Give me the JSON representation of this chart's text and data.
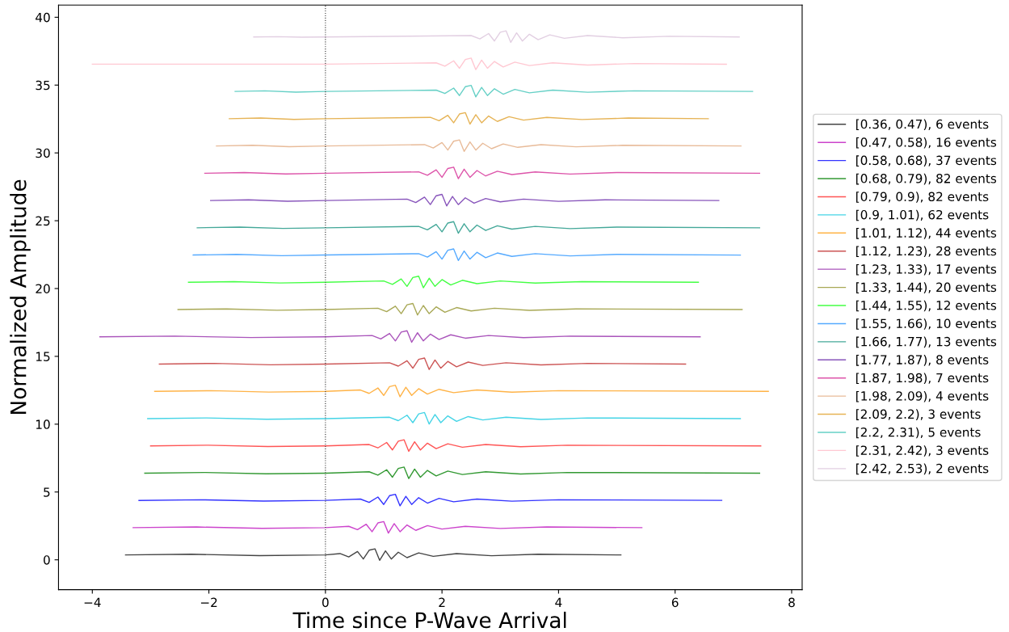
{
  "chart_data": {
    "type": "line",
    "xlabel": "Time since P-Wave Arrival",
    "ylabel": "Normalized Amplitude",
    "xlim": [
      -4.58,
      8.18
    ],
    "ylim": [
      -2.2,
      40.9
    ],
    "xticks": [
      {
        "value": -4,
        "label": "−4"
      },
      {
        "value": -2,
        "label": "−2"
      },
      0,
      2,
      4,
      6,
      8
    ],
    "yticks": [
      0,
      5,
      10,
      15,
      20,
      25,
      30,
      35,
      40
    ],
    "grid": false,
    "legend": "right",
    "line_style": "solid",
    "marker": "none",
    "ref_lines": [
      {
        "axis": "x",
        "value": 0,
        "color": "#333333",
        "line_style": "dotted"
      }
    ],
    "series": [
      {
        "name": "[0.36, 0.47), 6 events",
        "color": "#444444",
        "x": [
          -3.43,
          -2.3,
          -1.13,
          0,
          0.25,
          0.4,
          0.55,
          0.65,
          0.75,
          0.85,
          0.93,
          1.03,
          1.13,
          1.25,
          1.4,
          1.6,
          1.85,
          2.25,
          2.85,
          3.65,
          5.07
        ],
        "values": [
          0.36,
          0.41,
          0.31,
          0.36,
          0.46,
          0.21,
          0.61,
          0.06,
          0.71,
          0.81,
          -0.04,
          0.66,
          0.06,
          0.56,
          0.16,
          0.51,
          0.26,
          0.46,
          0.3,
          0.41,
          0.36
        ]
      },
      {
        "name": "[0.47, 0.58), 16 events",
        "color": "#cc44cc",
        "x": [
          -3.3,
          -2.21,
          -1.09,
          0,
          0.4,
          0.55,
          0.7,
          0.8,
          0.9,
          1.0,
          1.08,
          1.18,
          1.28,
          1.4,
          1.55,
          1.75,
          2.0,
          2.4,
          3.0,
          3.8,
          5.43
        ],
        "values": [
          2.37,
          2.42,
          2.32,
          2.37,
          2.47,
          2.22,
          2.62,
          2.07,
          2.72,
          2.82,
          1.97,
          2.67,
          2.07,
          2.57,
          2.17,
          2.52,
          2.27,
          2.47,
          2.31,
          2.42,
          2.37
        ]
      },
      {
        "name": "[0.58, 0.68), 37 events",
        "color": "#3333ff",
        "x": [
          -3.2,
          -2.14,
          -1.06,
          0,
          0.6,
          0.75,
          0.9,
          1.0,
          1.1,
          1.2,
          1.28,
          1.38,
          1.48,
          1.6,
          1.75,
          1.95,
          2.2,
          2.6,
          3.2,
          4.0,
          6.8
        ],
        "values": [
          4.38,
          4.43,
          4.33,
          4.38,
          4.48,
          4.23,
          4.63,
          4.08,
          4.73,
          4.83,
          3.98,
          4.68,
          4.08,
          4.58,
          4.18,
          4.53,
          4.28,
          4.48,
          4.32,
          4.43,
          4.38
        ]
      },
      {
        "name": "[0.68, 0.79), 82 events",
        "color": "#339933",
        "x": [
          -3.1,
          -2.08,
          -1.02,
          0,
          0.75,
          0.9,
          1.05,
          1.15,
          1.25,
          1.35,
          1.43,
          1.53,
          1.63,
          1.75,
          1.9,
          2.1,
          2.35,
          2.75,
          3.35,
          4.15,
          7.45
        ],
        "values": [
          6.39,
          6.44,
          6.34,
          6.39,
          6.49,
          6.24,
          6.64,
          6.09,
          6.74,
          6.84,
          5.99,
          6.69,
          6.09,
          6.59,
          6.19,
          6.54,
          6.29,
          6.49,
          6.33,
          6.44,
          6.39
        ]
      },
      {
        "name": "[0.79, 0.9), 82 events",
        "color": "#ff5555",
        "x": [
          -3.0,
          -2.01,
          -0.99,
          0,
          0.75,
          0.9,
          1.05,
          1.15,
          1.25,
          1.35,
          1.43,
          1.53,
          1.63,
          1.75,
          1.9,
          2.1,
          2.35,
          2.75,
          3.35,
          4.15,
          7.47
        ],
        "values": [
          8.4,
          8.45,
          8.35,
          8.4,
          8.5,
          8.25,
          8.65,
          8.1,
          8.75,
          8.85,
          8.0,
          8.7,
          8.1,
          8.6,
          8.2,
          8.55,
          8.3,
          8.5,
          8.34,
          8.45,
          8.4
        ]
      },
      {
        "name": "[0.9, 1.01), 62 events",
        "color": "#44d4e6",
        "x": [
          -3.05,
          -2.04,
          -1.01,
          0,
          1.1,
          1.25,
          1.4,
          1.5,
          1.6,
          1.7,
          1.78,
          1.88,
          1.98,
          2.1,
          2.25,
          2.45,
          2.7,
          3.1,
          3.7,
          4.5,
          7.12
        ],
        "values": [
          10.41,
          10.46,
          10.36,
          10.41,
          10.51,
          10.26,
          10.66,
          10.11,
          10.76,
          10.86,
          10.01,
          10.71,
          10.11,
          10.61,
          10.21,
          10.56,
          10.31,
          10.51,
          10.35,
          10.46,
          10.41
        ]
      },
      {
        "name": "[1.01, 1.12), 44 events",
        "color": "#ffb347",
        "x": [
          -2.93,
          -1.96,
          -0.97,
          0,
          0.6,
          0.75,
          0.9,
          1.0,
          1.1,
          1.2,
          1.28,
          1.38,
          1.48,
          1.6,
          1.75,
          1.95,
          2.2,
          2.6,
          3.2,
          4.0,
          7.6
        ],
        "values": [
          12.42,
          12.47,
          12.37,
          12.42,
          12.52,
          12.27,
          12.67,
          12.12,
          12.77,
          12.87,
          12.02,
          12.72,
          12.12,
          12.62,
          12.22,
          12.57,
          12.32,
          12.52,
          12.36,
          12.47,
          12.42
        ]
      },
      {
        "name": "[1.12, 1.23), 28 events",
        "color": "#cc5555",
        "x": [
          -2.85,
          -1.91,
          -0.94,
          0,
          1.1,
          1.25,
          1.4,
          1.5,
          1.6,
          1.7,
          1.78,
          1.88,
          1.98,
          2.1,
          2.25,
          2.45,
          2.7,
          3.1,
          3.7,
          4.5,
          6.18
        ],
        "values": [
          14.43,
          14.48,
          14.38,
          14.43,
          14.53,
          14.28,
          14.68,
          14.13,
          14.78,
          14.88,
          14.03,
          14.73,
          14.13,
          14.63,
          14.23,
          14.58,
          14.33,
          14.53,
          14.37,
          14.48,
          14.43
        ]
      },
      {
        "name": "[1.23, 1.33), 17 events",
        "color": "#aa55bb",
        "x": [
          -3.87,
          -2.59,
          -1.28,
          0,
          0.8,
          0.95,
          1.1,
          1.2,
          1.3,
          1.4,
          1.48,
          1.58,
          1.68,
          1.8,
          1.95,
          2.15,
          2.4,
          2.8,
          3.4,
          4.2,
          6.43
        ],
        "values": [
          16.44,
          16.49,
          16.39,
          16.44,
          16.54,
          16.29,
          16.69,
          16.14,
          16.79,
          16.89,
          16.04,
          16.74,
          16.14,
          16.64,
          16.24,
          16.59,
          16.34,
          16.54,
          16.38,
          16.49,
          16.44
        ]
      },
      {
        "name": "[1.33, 1.44), 20 events",
        "color": "#a8a855",
        "x": [
          -2.53,
          -1.7,
          -0.83,
          0,
          0.9,
          1.05,
          1.2,
          1.3,
          1.4,
          1.5,
          1.58,
          1.68,
          1.78,
          1.9,
          2.05,
          2.25,
          2.5,
          2.9,
          3.5,
          4.3,
          7.15
        ],
        "values": [
          18.45,
          18.5,
          18.4,
          18.45,
          18.55,
          18.3,
          18.7,
          18.15,
          18.8,
          18.9,
          18.05,
          18.75,
          18.15,
          18.65,
          18.25,
          18.6,
          18.35,
          18.55,
          18.39,
          18.5,
          18.45
        ]
      },
      {
        "name": "[1.44, 1.55), 12 events",
        "color": "#44ff44",
        "x": [
          -2.35,
          -1.57,
          -0.78,
          0,
          1.0,
          1.15,
          1.3,
          1.4,
          1.5,
          1.6,
          1.68,
          1.78,
          1.88,
          2.0,
          2.15,
          2.35,
          2.6,
          3.0,
          3.6,
          4.4,
          6.4
        ],
        "values": [
          20.46,
          20.51,
          20.41,
          20.46,
          20.56,
          20.31,
          20.71,
          20.16,
          20.81,
          20.91,
          20.06,
          20.76,
          20.16,
          20.66,
          20.26,
          20.61,
          20.36,
          20.56,
          20.4,
          20.51,
          20.46
        ]
      },
      {
        "name": "[1.55, 1.66), 10 events",
        "color": "#55aaff",
        "x": [
          -2.27,
          -1.52,
          -0.75,
          0,
          1.6,
          1.75,
          1.9,
          2.0,
          2.1,
          2.2,
          2.28,
          2.38,
          2.48,
          2.6,
          2.75,
          2.95,
          3.2,
          3.6,
          4.2,
          5.0,
          7.12
        ],
        "values": [
          22.47,
          22.52,
          22.42,
          22.47,
          22.57,
          22.32,
          22.72,
          22.17,
          22.82,
          22.92,
          22.07,
          22.77,
          22.17,
          22.67,
          22.27,
          22.62,
          22.37,
          22.57,
          22.41,
          22.52,
          22.47
        ]
      },
      {
        "name": "[1.66, 1.77), 13 events",
        "color": "#44a899",
        "x": [
          -2.2,
          -1.47,
          -0.73,
          0,
          1.6,
          1.75,
          1.9,
          2.0,
          2.1,
          2.2,
          2.28,
          2.38,
          2.48,
          2.6,
          2.75,
          2.95,
          3.2,
          3.6,
          4.2,
          5.0,
          7.45
        ],
        "values": [
          24.48,
          24.53,
          24.43,
          24.48,
          24.58,
          24.33,
          24.73,
          24.18,
          24.83,
          24.93,
          24.08,
          24.78,
          24.18,
          24.68,
          24.28,
          24.63,
          24.38,
          24.58,
          24.42,
          24.53,
          24.48
        ]
      },
      {
        "name": "[1.77, 1.87), 8 events",
        "color": "#8855bb",
        "x": [
          -1.97,
          -1.32,
          -0.65,
          0,
          1.4,
          1.55,
          1.7,
          1.8,
          1.9,
          2.0,
          2.08,
          2.18,
          2.28,
          2.4,
          2.55,
          2.75,
          3.0,
          3.4,
          4.0,
          4.8,
          6.75
        ],
        "values": [
          26.49,
          26.54,
          26.44,
          26.49,
          26.59,
          26.34,
          26.74,
          26.19,
          26.84,
          26.94,
          26.09,
          26.79,
          26.19,
          26.69,
          26.29,
          26.64,
          26.39,
          26.59,
          26.43,
          26.54,
          26.49
        ]
      },
      {
        "name": "[1.87, 1.98), 7 events",
        "color": "#dd55aa",
        "x": [
          -2.07,
          -1.39,
          -0.68,
          0,
          1.6,
          1.75,
          1.9,
          2.0,
          2.1,
          2.2,
          2.28,
          2.38,
          2.48,
          2.6,
          2.75,
          2.95,
          3.2,
          3.6,
          4.2,
          5.0,
          7.45
        ],
        "values": [
          28.5,
          28.55,
          28.45,
          28.5,
          28.6,
          28.35,
          28.75,
          28.2,
          28.85,
          28.95,
          28.1,
          28.8,
          28.2,
          28.7,
          28.3,
          28.65,
          28.4,
          28.6,
          28.44,
          28.55,
          28.5
        ]
      },
      {
        "name": "[1.98, 2.09), 4 events",
        "color": "#e8bb99",
        "x": [
          -1.87,
          -1.25,
          -0.62,
          0,
          1.7,
          1.85,
          2.0,
          2.1,
          2.2,
          2.3,
          2.38,
          2.48,
          2.58,
          2.7,
          2.85,
          3.05,
          3.3,
          3.7,
          4.3,
          5.1,
          7.13
        ],
        "values": [
          30.51,
          30.56,
          30.46,
          30.51,
          30.61,
          30.36,
          30.76,
          30.21,
          30.86,
          30.96,
          30.11,
          30.81,
          30.21,
          30.71,
          30.31,
          30.66,
          30.41,
          30.61,
          30.45,
          30.56,
          30.51
        ]
      },
      {
        "name": "[2.09, 2.2), 3 events",
        "color": "#e6b355",
        "x": [
          -1.65,
          -1.11,
          -0.54,
          0,
          1.8,
          1.95,
          2.1,
          2.2,
          2.3,
          2.4,
          2.48,
          2.58,
          2.68,
          2.8,
          2.95,
          3.15,
          3.4,
          3.8,
          4.4,
          5.2,
          6.57
        ],
        "values": [
          32.52,
          32.57,
          32.47,
          32.52,
          32.62,
          32.37,
          32.77,
          32.22,
          32.87,
          32.97,
          32.12,
          32.82,
          32.22,
          32.72,
          32.32,
          32.67,
          32.42,
          32.62,
          32.46,
          32.57,
          32.52
        ]
      },
      {
        "name": "[2.2, 2.31), 5 events",
        "color": "#66d0c6",
        "x": [
          -1.55,
          -1.04,
          -0.51,
          0,
          1.9,
          2.05,
          2.2,
          2.3,
          2.4,
          2.5,
          2.58,
          2.68,
          2.78,
          2.9,
          3.05,
          3.25,
          3.5,
          3.9,
          4.5,
          5.3,
          7.33
        ],
        "values": [
          34.53,
          34.58,
          34.48,
          34.53,
          34.63,
          34.38,
          34.78,
          34.23,
          34.88,
          34.98,
          34.13,
          34.83,
          34.23,
          34.73,
          34.33,
          34.68,
          34.43,
          34.63,
          34.47,
          34.58,
          34.53
        ]
      },
      {
        "name": "[2.31, 2.42), 3 events",
        "color": "#ffc8d2",
        "x": [
          -4.0,
          -2.68,
          -1.32,
          0,
          1.9,
          2.05,
          2.2,
          2.3,
          2.4,
          2.5,
          2.58,
          2.68,
          2.78,
          2.9,
          3.05,
          3.25,
          3.5,
          3.9,
          4.5,
          5.3,
          6.88
        ],
        "values": [
          36.54,
          36.54,
          36.54,
          36.54,
          36.64,
          36.39,
          36.79,
          36.24,
          36.89,
          36.99,
          36.14,
          36.84,
          36.24,
          36.74,
          36.34,
          36.69,
          36.44,
          36.64,
          36.48,
          36.59,
          36.54
        ]
      },
      {
        "name": "[2.42, 2.53), 2 events",
        "color": "#e2cfe2",
        "x": [
          -1.23,
          -0.82,
          -0.41,
          0,
          2.5,
          2.65,
          2.8,
          2.9,
          3.0,
          3.1,
          3.18,
          3.28,
          3.38,
          3.5,
          3.65,
          3.85,
          4.1,
          4.5,
          5.1,
          5.9,
          7.1
        ],
        "values": [
          38.55,
          38.57,
          38.53,
          38.55,
          38.65,
          38.4,
          38.8,
          38.25,
          38.9,
          39.0,
          38.15,
          38.85,
          38.25,
          38.75,
          38.35,
          38.7,
          38.45,
          38.65,
          38.49,
          38.6,
          38.55
        ]
      }
    ]
  }
}
